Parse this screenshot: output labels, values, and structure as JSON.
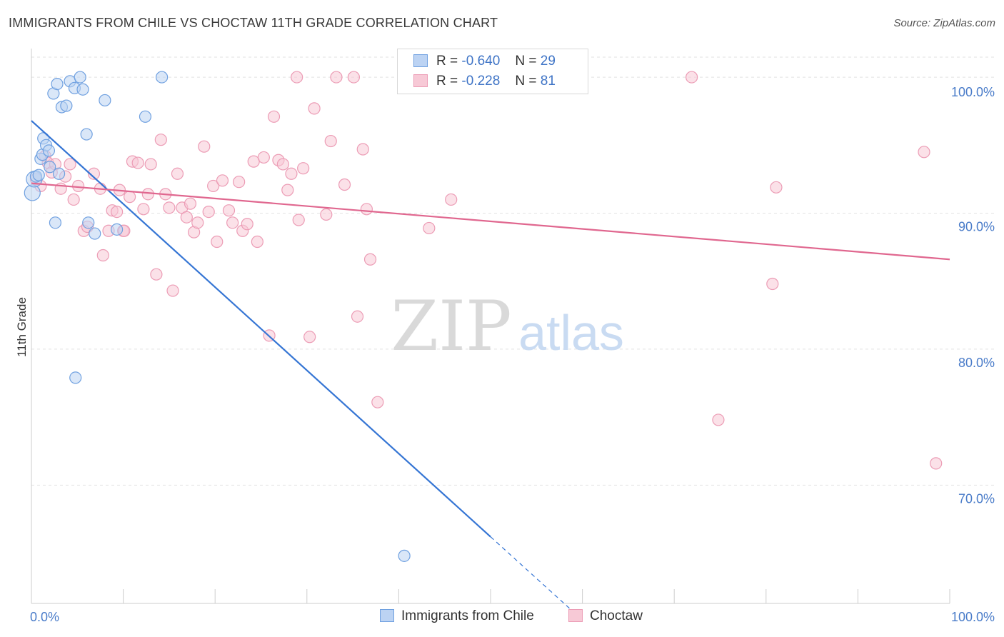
{
  "title": "IMMIGRANTS FROM CHILE VS CHOCTAW 11TH GRADE CORRELATION CHART",
  "source": "Source: ZipAtlas.com",
  "watermark": {
    "zip": "ZIP",
    "atlas": "atlas"
  },
  "legend": {
    "r_label": "R =",
    "n_label": "N =",
    "series": [
      {
        "name": "Immigrants from Chile",
        "r": "-0.640",
        "n": "29",
        "color": "#6fa0e0",
        "fill": "#bcd3f3",
        "line": "#3575d4"
      },
      {
        "name": "Choctaw",
        "r": "-0.228",
        "n": "81",
        "color": "#ec9cb5",
        "fill": "#f7c9d6",
        "line": "#e0678f"
      }
    ]
  },
  "colors": {
    "blue_point": "#6fa0e0",
    "pink_point": "#ec9cb5",
    "grid": "#e2e2e2",
    "tick_text": "#4a7cc9"
  },
  "chart_data": {
    "type": "scatter",
    "xlabel": "",
    "ylabel": "11th Grade",
    "x_tick_labels": [
      "0.0%",
      "100.0%"
    ],
    "y_tick_labels": [
      "100.0%",
      "90.0%",
      "80.0%",
      "70.0%"
    ],
    "y_ticks": [
      100,
      90,
      80,
      70
    ],
    "xlim": [
      0,
      100
    ],
    "ylim": [
      61.3,
      102
    ],
    "series": [
      {
        "name": "Immigrants from Chile",
        "trend": {
          "x0": 0,
          "y0": 96.8,
          "x1": 50,
          "y1": 66.2,
          "dash_to_x": 60
        },
        "points": [
          [
            0.1,
            91.5
          ],
          [
            0.3,
            92.5
          ],
          [
            0.5,
            92.7
          ],
          [
            0.8,
            92.8
          ],
          [
            1.0,
            94.0
          ],
          [
            1.2,
            94.3
          ],
          [
            1.3,
            95.5
          ],
          [
            1.6,
            95.0
          ],
          [
            1.9,
            94.6
          ],
          [
            2.0,
            93.4
          ],
          [
            2.4,
            98.8
          ],
          [
            2.8,
            99.5
          ],
          [
            3.0,
            92.9
          ],
          [
            3.3,
            97.8
          ],
          [
            3.8,
            97.9
          ],
          [
            4.2,
            99.7
          ],
          [
            4.7,
            99.2
          ],
          [
            5.3,
            100.0
          ],
          [
            5.6,
            99.1
          ],
          [
            6.0,
            95.8
          ],
          [
            6.2,
            89.3
          ],
          [
            6.9,
            88.5
          ],
          [
            8.0,
            98.3
          ],
          [
            9.3,
            88.8
          ],
          [
            12.4,
            97.1
          ],
          [
            14.2,
            100.0
          ],
          [
            2.6,
            89.3
          ],
          [
            4.8,
            77.9
          ],
          [
            40.6,
            64.8
          ]
        ]
      },
      {
        "name": "Choctaw",
        "trend": {
          "x0": 0,
          "y0": 92.2,
          "x1": 100,
          "y1": 86.6
        },
        "points": [
          [
            0.5,
            92.5
          ],
          [
            1.0,
            92.0
          ],
          [
            1.5,
            94.2
          ],
          [
            1.8,
            93.7
          ],
          [
            2.2,
            93.0
          ],
          [
            2.6,
            93.6
          ],
          [
            3.2,
            91.8
          ],
          [
            3.7,
            92.7
          ],
          [
            4.2,
            93.6
          ],
          [
            4.6,
            91.0
          ],
          [
            5.1,
            92.0
          ],
          [
            5.7,
            88.7
          ],
          [
            6.1,
            89.0
          ],
          [
            6.8,
            92.9
          ],
          [
            7.5,
            91.8
          ],
          [
            7.8,
            86.9
          ],
          [
            8.4,
            88.7
          ],
          [
            8.8,
            90.2
          ],
          [
            9.3,
            90.1
          ],
          [
            9.6,
            91.7
          ],
          [
            10.0,
            88.7
          ],
          [
            10.7,
            91.2
          ],
          [
            11.0,
            93.8
          ],
          [
            11.6,
            93.7
          ],
          [
            12.2,
            90.3
          ],
          [
            12.7,
            91.4
          ],
          [
            13.0,
            93.6
          ],
          [
            13.6,
            85.5
          ],
          [
            14.1,
            95.4
          ],
          [
            14.6,
            91.4
          ],
          [
            15.0,
            90.4
          ],
          [
            15.4,
            84.3
          ],
          [
            15.9,
            92.9
          ],
          [
            16.4,
            90.4
          ],
          [
            16.9,
            89.7
          ],
          [
            17.3,
            90.7
          ],
          [
            17.7,
            88.6
          ],
          [
            18.1,
            89.3
          ],
          [
            18.8,
            94.9
          ],
          [
            19.3,
            90.1
          ],
          [
            19.8,
            92.0
          ],
          [
            20.2,
            87.9
          ],
          [
            20.8,
            92.4
          ],
          [
            21.5,
            90.2
          ],
          [
            21.9,
            89.3
          ],
          [
            22.6,
            92.3
          ],
          [
            23.0,
            88.7
          ],
          [
            23.5,
            89.2
          ],
          [
            24.2,
            93.8
          ],
          [
            24.6,
            87.9
          ],
          [
            25.3,
            94.1
          ],
          [
            25.9,
            81.0
          ],
          [
            26.4,
            97.1
          ],
          [
            26.9,
            93.9
          ],
          [
            27.4,
            93.6
          ],
          [
            27.9,
            91.7
          ],
          [
            28.3,
            92.9
          ],
          [
            28.9,
            100.0
          ],
          [
            29.1,
            89.5
          ],
          [
            29.6,
            93.3
          ],
          [
            30.3,
            80.9
          ],
          [
            30.8,
            97.7
          ],
          [
            32.1,
            89.9
          ],
          [
            32.6,
            95.3
          ],
          [
            33.2,
            100.0
          ],
          [
            34.1,
            92.1
          ],
          [
            35.1,
            100.0
          ],
          [
            35.5,
            82.4
          ],
          [
            36.1,
            94.7
          ],
          [
            36.5,
            90.3
          ],
          [
            36.9,
            86.6
          ],
          [
            37.7,
            76.1
          ],
          [
            43.3,
            88.9
          ],
          [
            45.7,
            91.0
          ],
          [
            71.9,
            100.0
          ],
          [
            74.8,
            74.8
          ],
          [
            80.7,
            84.8
          ],
          [
            81.1,
            91.9
          ],
          [
            97.2,
            94.5
          ],
          [
            98.5,
            71.6
          ],
          [
            10.1,
            88.7
          ]
        ]
      }
    ]
  }
}
